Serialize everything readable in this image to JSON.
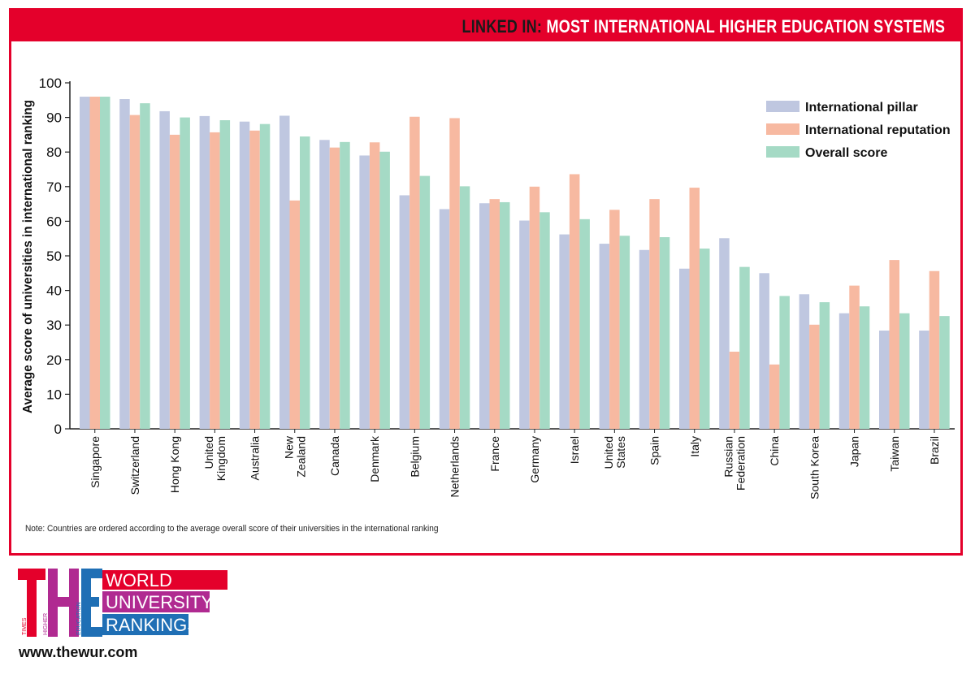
{
  "header": {
    "title_lead": "LINKED IN:",
    "title_rest": "MOST INTERNATIONAL HIGHER EDUCATION SYSTEMS"
  },
  "note": "Note: Countries are ordered according to the average overall score of their universities in the international ranking",
  "footer": {
    "url": "www.thewur.com",
    "logo": {
      "mark": "THE",
      "small_words": [
        "TIMES",
        "HIGHER",
        "EDUCATION"
      ],
      "words": [
        "WORLD",
        "UNIVERSITY",
        "RANKINGS"
      ]
    }
  },
  "colors": {
    "brand_red": "#e4002b",
    "international_pillar": "#bfc7e0",
    "international_reputation": "#f7b9a1",
    "overall_score": "#a5dac5",
    "logo_red": "#e4002b",
    "logo_magenta": "#b02a91",
    "logo_blue": "#1f6fb5"
  },
  "chart_data": {
    "type": "bar",
    "title": "LINKED IN: MOST INTERNATIONAL HIGHER EDUCATION SYSTEMS",
    "xlabel": "",
    "ylabel": "Average score of universities in international ranking",
    "ylim": [
      0,
      100
    ],
    "yticks": [
      0,
      10,
      20,
      30,
      40,
      50,
      60,
      70,
      80,
      90,
      100
    ],
    "grid": false,
    "legend_position": "top-right",
    "categories": [
      [
        "Singapore"
      ],
      [
        "Switzerland"
      ],
      [
        "Hong Kong"
      ],
      [
        "United",
        "Kingdom"
      ],
      [
        "Australia"
      ],
      [
        "New",
        "Zealand"
      ],
      [
        "Canada"
      ],
      [
        "Denmark"
      ],
      [
        "Belgium"
      ],
      [
        "Netherlands"
      ],
      [
        "France"
      ],
      [
        "Germany"
      ],
      [
        "Israel"
      ],
      [
        "United",
        "States"
      ],
      [
        "Spain"
      ],
      [
        "Italy"
      ],
      [
        "Russian",
        "Federation"
      ],
      [
        "China"
      ],
      [
        "South Korea"
      ],
      [
        "Japan"
      ],
      [
        "Taiwan"
      ],
      [
        "Brazil"
      ]
    ],
    "series": [
      {
        "name": "International pillar",
        "color": "#bfc7e0",
        "values": [
          96,
          95.3,
          91.8,
          90.4,
          88.8,
          90.5,
          83.5,
          79,
          67.5,
          63.5,
          65.2,
          60.2,
          56.2,
          53.5,
          51.7,
          46.3,
          55.1,
          45,
          38.9,
          33.4,
          28.4,
          28.4
        ]
      },
      {
        "name": "International reputation",
        "color": "#f7b9a1",
        "values": [
          96,
          90.7,
          85,
          85.7,
          86.2,
          66,
          81.3,
          82.8,
          90.2,
          89.8,
          66.4,
          70,
          73.6,
          63.3,
          66.4,
          69.7,
          22.3,
          18.6,
          30.1,
          41.4,
          48.8,
          45.6
        ]
      },
      {
        "name": "Overall score",
        "color": "#a5dac5",
        "values": [
          96,
          94.1,
          90,
          89.2,
          88.1,
          84.5,
          82.9,
          80.1,
          73.1,
          70.1,
          65.5,
          62.6,
          60.6,
          55.8,
          55.4,
          52.1,
          46.8,
          38.4,
          36.6,
          35.4,
          33.4,
          32.6
        ]
      }
    ]
  }
}
